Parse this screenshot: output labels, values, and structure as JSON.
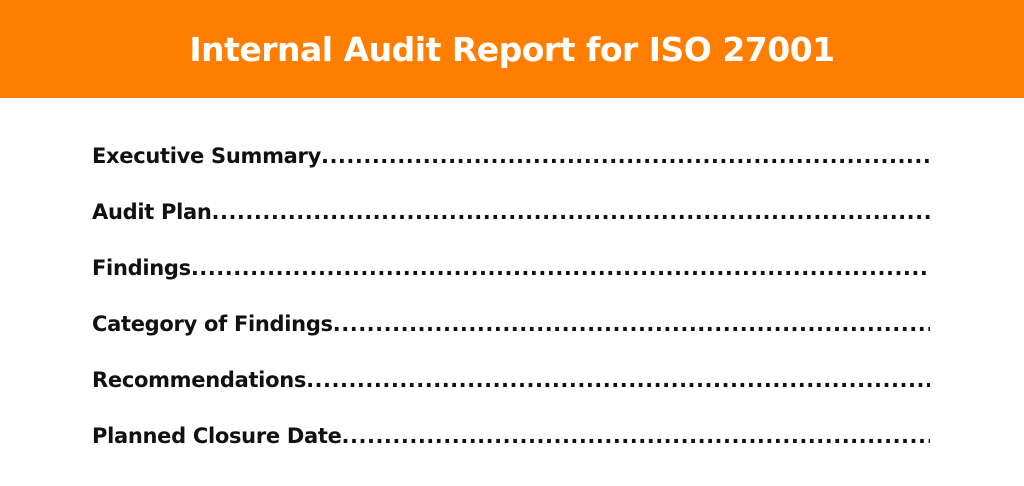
{
  "header": {
    "title": "Internal Audit Report for ISO 27001",
    "background_color": "#ff7e00"
  },
  "toc": {
    "items": [
      {
        "label": "Executive Summary"
      },
      {
        "label": "Audit Plan"
      },
      {
        "label": "Findings"
      },
      {
        "label": "Category of Findings"
      },
      {
        "label": "Recommendations"
      },
      {
        "label": "Planned Closure Date"
      }
    ]
  }
}
